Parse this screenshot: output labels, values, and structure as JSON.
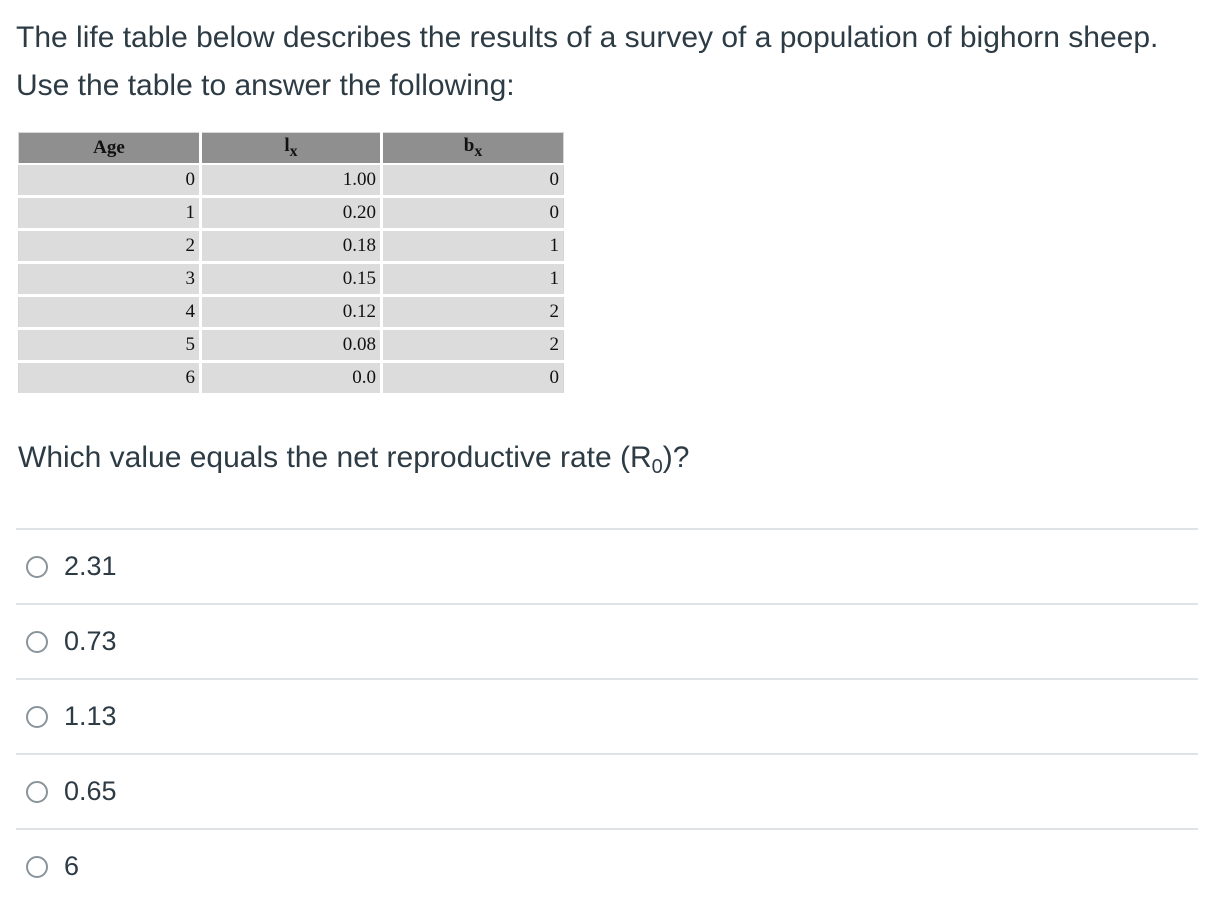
{
  "question": {
    "intro": "The life table below describes the results of a survey of a population of bighorn sheep. Use the table to answer the following:",
    "prompt_prefix": "Which value equals the net reproductive rate (R",
    "prompt_subscript": "0",
    "prompt_suffix": ")?"
  },
  "table": {
    "headers": {
      "age": "Age",
      "lx_base": "l",
      "lx_sub": "x",
      "bx_base": "b",
      "bx_sub": "x"
    },
    "rows": [
      {
        "age": "0",
        "lx": "1.00",
        "bx": "0"
      },
      {
        "age": "1",
        "lx": "0.20",
        "bx": "0"
      },
      {
        "age": "2",
        "lx": "0.18",
        "bx": "1"
      },
      {
        "age": "3",
        "lx": "0.15",
        "bx": "1"
      },
      {
        "age": "4",
        "lx": "0.12",
        "bx": "2"
      },
      {
        "age": "5",
        "lx": "0.08",
        "bx": "2"
      },
      {
        "age": "6",
        "lx": "0.0",
        "bx": "0"
      }
    ]
  },
  "answers": [
    {
      "label": "2.31",
      "selected": false
    },
    {
      "label": "0.73",
      "selected": false
    },
    {
      "label": "1.13",
      "selected": false
    },
    {
      "label": "0.65",
      "selected": false
    },
    {
      "label": "6",
      "selected": false
    }
  ]
}
